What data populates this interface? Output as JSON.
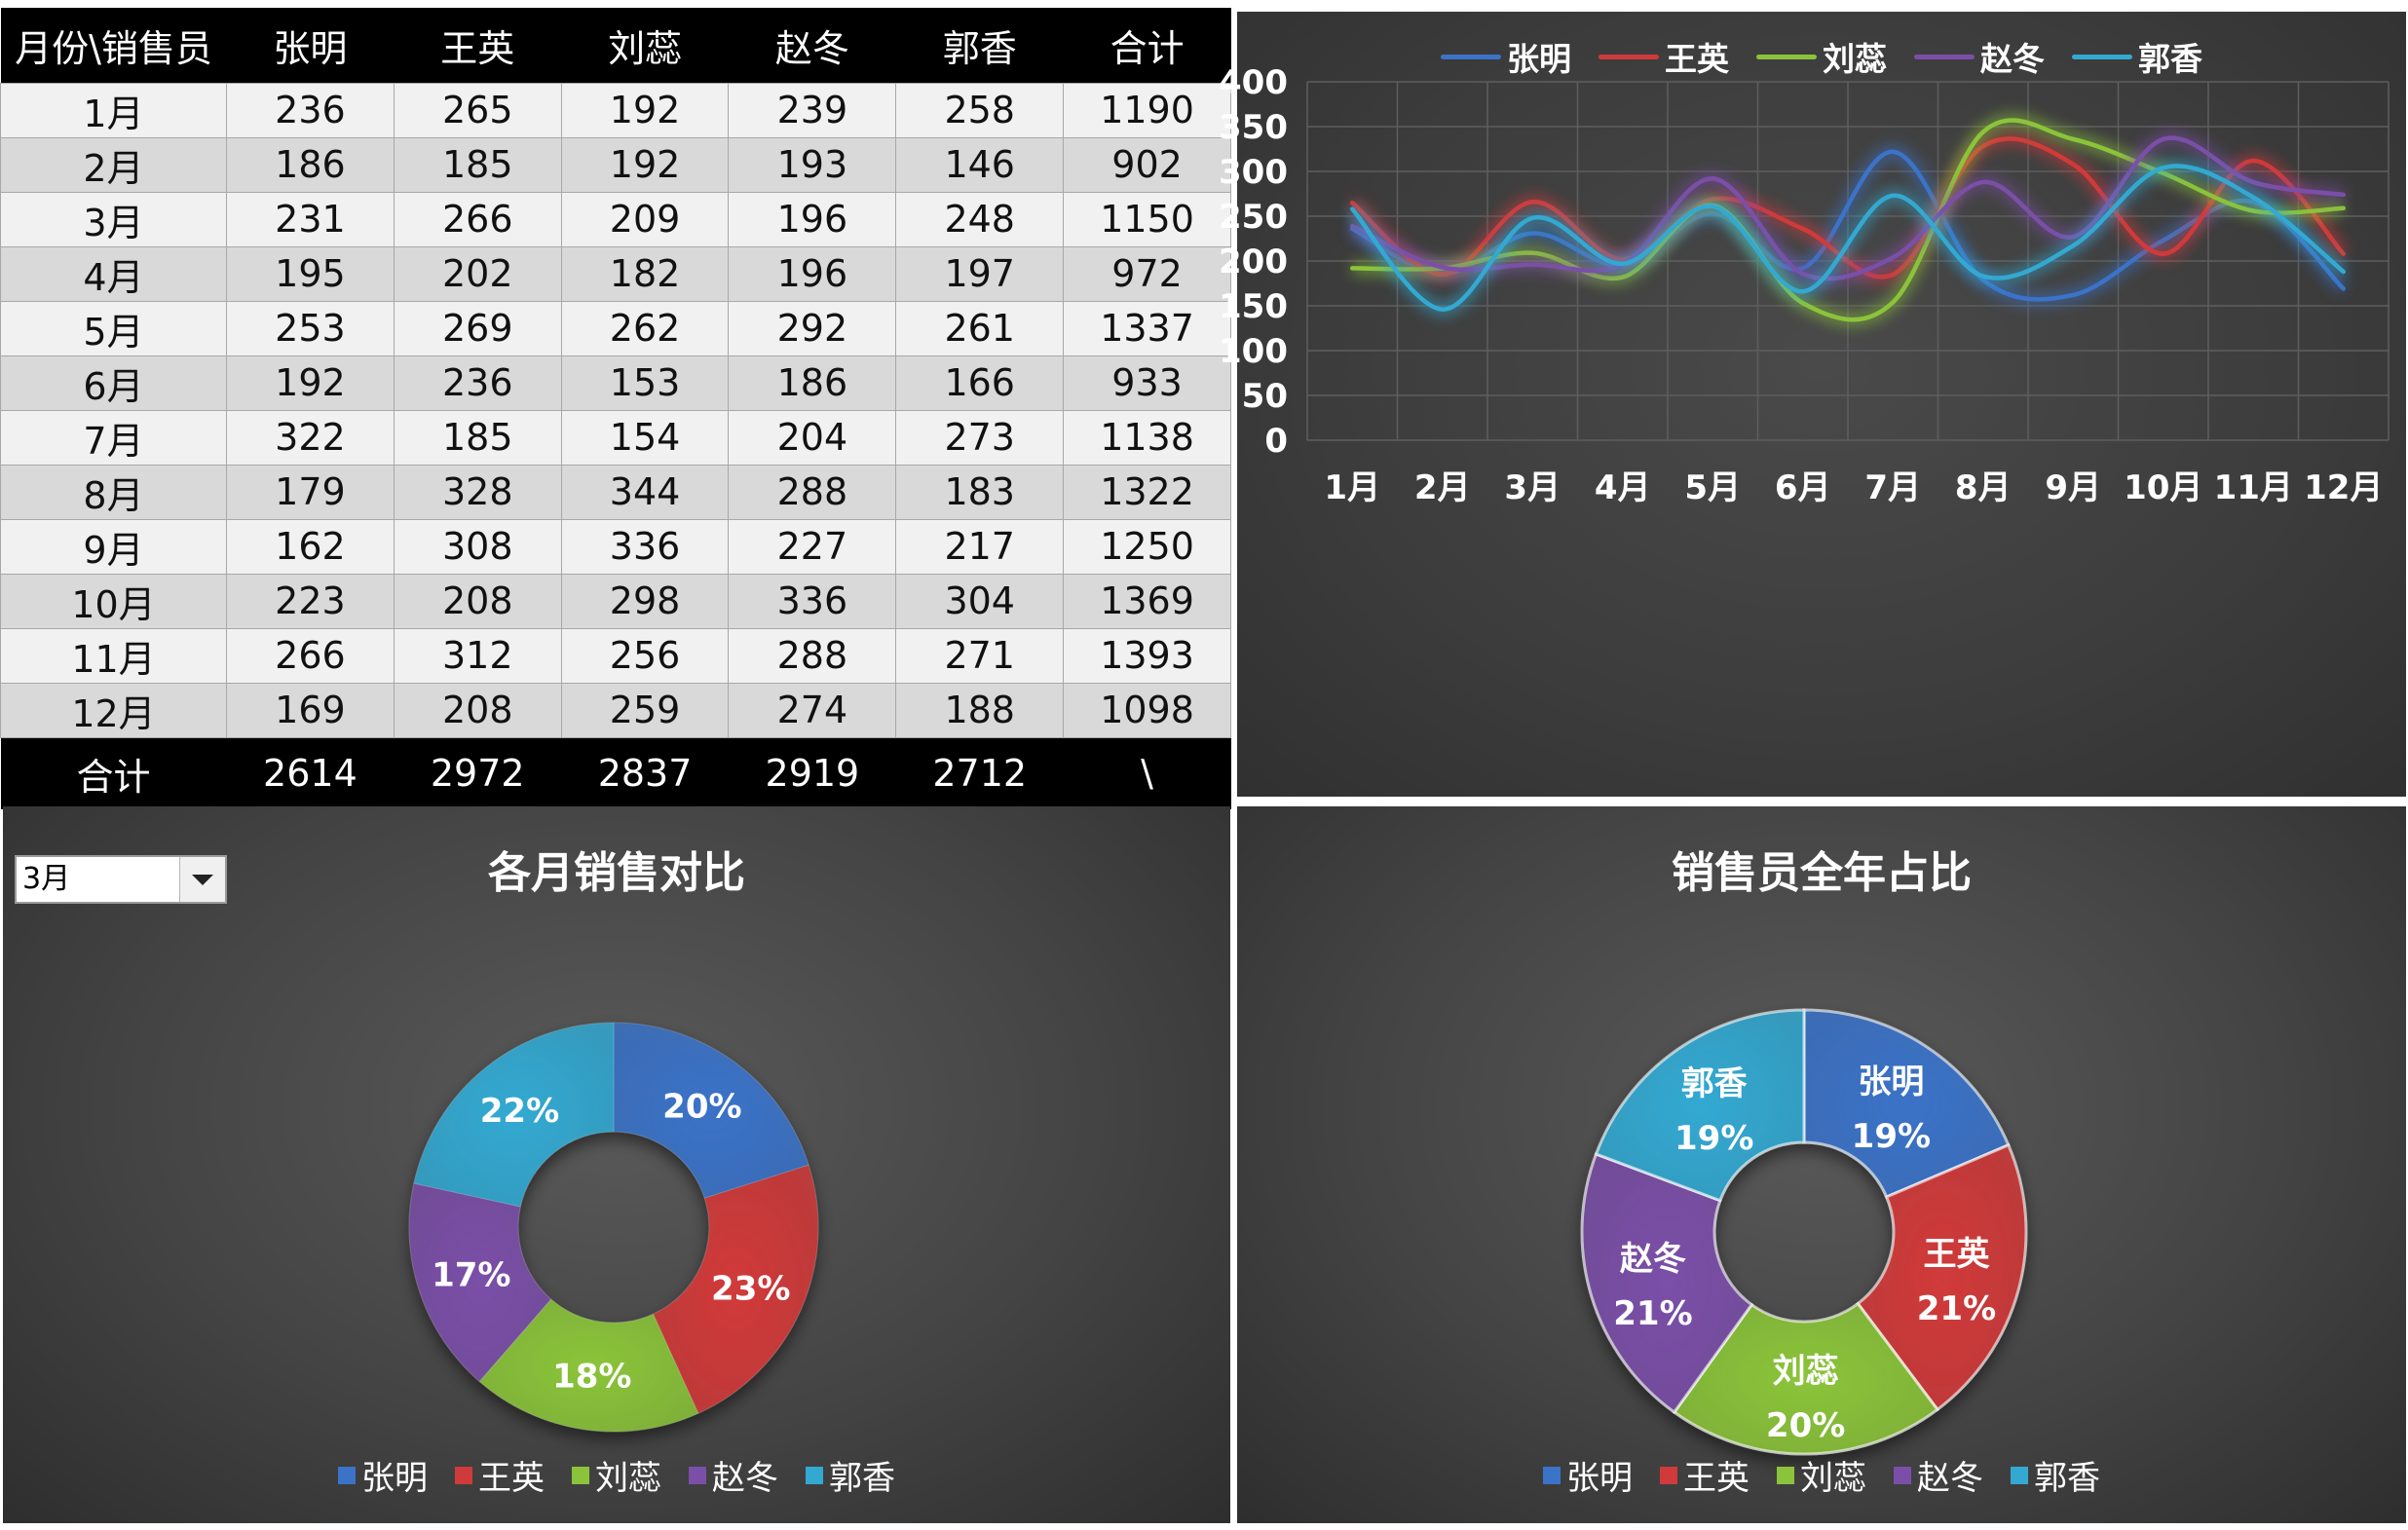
{
  "table": {
    "corner_header": "月份\\销售员",
    "people": [
      "张明",
      "王英",
      "刘蕊",
      "赵冬",
      "郭香"
    ],
    "total_header": "合计",
    "rows": [
      {
        "month": "1月",
        "values": [
          236,
          265,
          192,
          239,
          258
        ],
        "total": 1190
      },
      {
        "month": "2月",
        "values": [
          186,
          185,
          192,
          193,
          146
        ],
        "total": 902
      },
      {
        "month": "3月",
        "values": [
          231,
          266,
          209,
          196,
          248
        ],
        "total": 1150
      },
      {
        "month": "4月",
        "values": [
          195,
          202,
          182,
          196,
          197
        ],
        "total": 972
      },
      {
        "month": "5月",
        "values": [
          253,
          269,
          262,
          292,
          261
        ],
        "total": 1337
      },
      {
        "month": "6月",
        "values": [
          192,
          236,
          153,
          186,
          166
        ],
        "total": 933
      },
      {
        "month": "7月",
        "values": [
          322,
          185,
          154,
          204,
          273
        ],
        "total": 1138
      },
      {
        "month": "8月",
        "values": [
          179,
          328,
          344,
          288,
          183
        ],
        "total": 1322
      },
      {
        "month": "9月",
        "values": [
          162,
          308,
          336,
          227,
          217
        ],
        "total": 1250
      },
      {
        "month": "10月",
        "values": [
          223,
          208,
          298,
          336,
          304
        ],
        "total": 1369
      },
      {
        "month": "11月",
        "values": [
          266,
          312,
          256,
          288,
          271
        ],
        "total": 1393
      },
      {
        "month": "12月",
        "values": [
          169,
          208,
          259,
          274,
          188
        ],
        "total": 1098
      }
    ],
    "footer": {
      "label": "合计",
      "values": [
        2614,
        2972,
        2837,
        2919,
        2712
      ],
      "total": "\\"
    }
  },
  "colors": {
    "zhangming": "#3b73c8",
    "wangying": "#d13a3a",
    "liurui": "#8bc43a",
    "zhaodong": "#7b4fa8",
    "guoxiang": "#33a9d2"
  },
  "month_select": {
    "value": "3月"
  },
  "chart_data": [
    {
      "type": "line",
      "smooth": true,
      "title": "",
      "categories": [
        "1月",
        "2月",
        "3月",
        "4月",
        "5月",
        "6月",
        "7月",
        "8月",
        "9月",
        "10月",
        "11月",
        "12月"
      ],
      "ylim": [
        0,
        400
      ],
      "yticks": [
        0,
        50,
        100,
        150,
        200,
        250,
        300,
        350,
        400
      ],
      "grid": true,
      "legend": "top",
      "series": [
        {
          "name": "张明",
          "values": [
            236,
            186,
            231,
            195,
            253,
            192,
            322,
            179,
            162,
            223,
            266,
            169
          ]
        },
        {
          "name": "王英",
          "values": [
            265,
            185,
            266,
            202,
            269,
            236,
            185,
            328,
            308,
            208,
            312,
            208
          ]
        },
        {
          "name": "刘蕊",
          "values": [
            192,
            192,
            209,
            182,
            262,
            153,
            154,
            344,
            336,
            298,
            256,
            259
          ]
        },
        {
          "name": "赵冬",
          "values": [
            239,
            193,
            196,
            196,
            292,
            186,
            204,
            288,
            227,
            336,
            288,
            274
          ]
        },
        {
          "name": "郭香",
          "values": [
            258,
            146,
            248,
            197,
            261,
            166,
            273,
            183,
            217,
            304,
            271,
            188
          ]
        }
      ]
    },
    {
      "type": "pie",
      "donut": true,
      "title": "各月销售对比",
      "labels": [
        "张明",
        "王英",
        "刘蕊",
        "赵冬",
        "郭香"
      ],
      "values": [
        231,
        266,
        209,
        196,
        248
      ],
      "percent_labels": [
        "20%",
        "23%",
        "18%",
        "17%",
        "22%"
      ],
      "legend": "bottom"
    },
    {
      "type": "pie",
      "donut": true,
      "title": "销售员全年占比",
      "labels": [
        "张明",
        "王英",
        "刘蕊",
        "赵冬",
        "郭香"
      ],
      "values": [
        2614,
        2972,
        2837,
        2919,
        2712
      ],
      "percent_labels": [
        "19%",
        "21%",
        "20%",
        "21%",
        "19%"
      ],
      "legend": "bottom"
    }
  ]
}
